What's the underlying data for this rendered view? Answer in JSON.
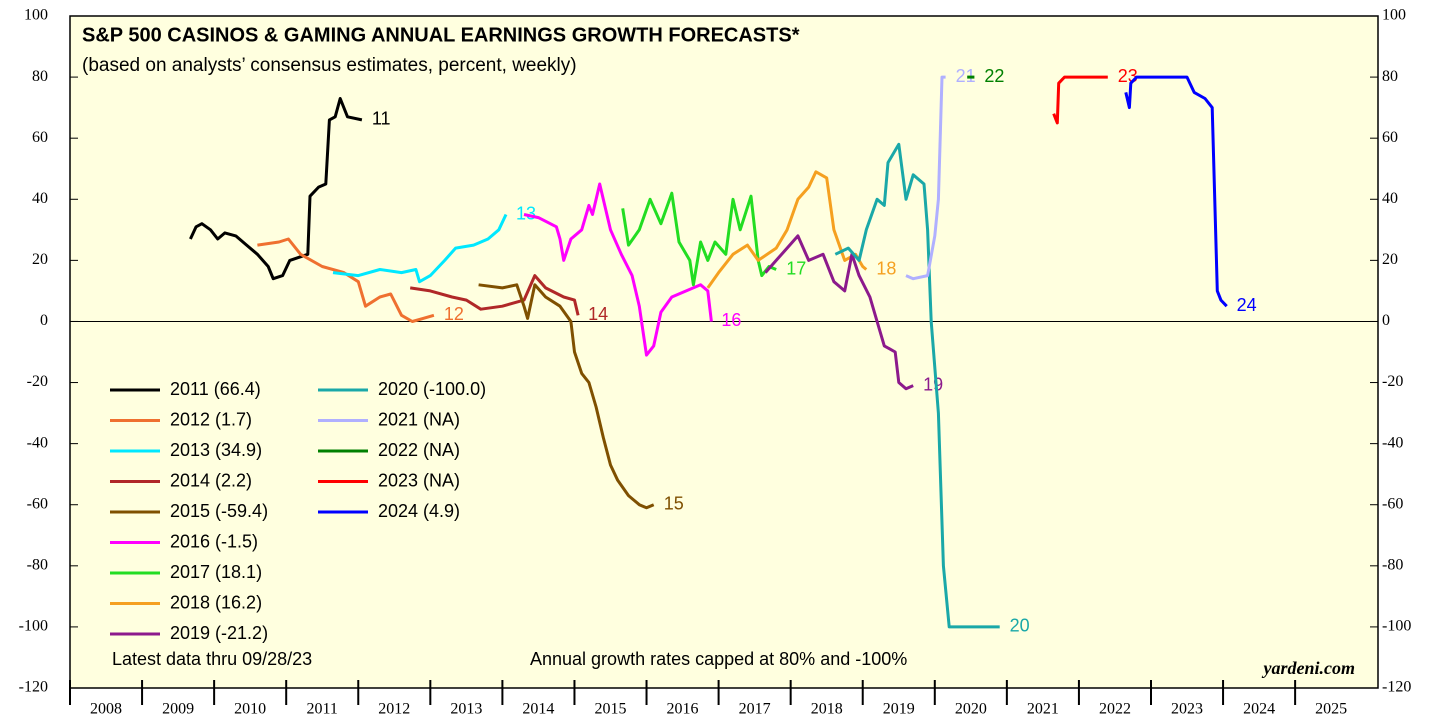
{
  "chart_data": {
    "type": "line",
    "title": "S&P 500 CASINOS & GAMING ANNUAL EARNINGS GROWTH FORECASTS*",
    "subtitle": "(based on analysts’ consensus estimates, percent, weekly)",
    "annotations": [
      "Latest data thru 09/28/23",
      "Annual growth rates capped at 80% and -100%"
    ],
    "source": "yardeni.com",
    "xlim": [
      2008,
      2026.15
    ],
    "xticks": [
      2008,
      2009,
      2010,
      2011,
      2012,
      2013,
      2014,
      2015,
      2016,
      2017,
      2018,
      2019,
      2020,
      2021,
      2022,
      2023,
      2024,
      2025
    ],
    "ylim": [
      -120,
      100
    ],
    "yticks": [
      -120,
      -100,
      -80,
      -60,
      -40,
      -20,
      0,
      20,
      40,
      60,
      80,
      100
    ],
    "series": [
      {
        "name": "2011 (66.4)",
        "label": "11",
        "color": "#000000",
        "x": [
          2009.67,
          2009.75,
          2009.83,
          2009.95,
          2010.05,
          2010.15,
          2010.3,
          2010.45,
          2010.6,
          2010.75,
          2010.82,
          2010.95,
          2011.05,
          2011.3,
          2011.33,
          2011.45,
          2011.55,
          2011.6,
          2011.68,
          2011.75,
          2011.85,
          2012.05
        ],
        "values": [
          27,
          31,
          32,
          30,
          27,
          29,
          28,
          25,
          22,
          18,
          14,
          15,
          20,
          22,
          41,
          44,
          45,
          66,
          67,
          73,
          67,
          66
        ]
      },
      {
        "name": "2012 (1.7)",
        "label": "12",
        "color": "#ef7030",
        "x": [
          2010.6,
          2010.9,
          2011.03,
          2011.2,
          2011.5,
          2011.8,
          2012.0,
          2012.1,
          2012.3,
          2012.45,
          2012.6,
          2012.75,
          2012.9,
          2013.05
        ],
        "values": [
          25,
          26,
          27,
          22,
          18,
          16,
          13,
          5,
          8,
          9,
          2,
          0,
          1,
          2
        ]
      },
      {
        "name": "2013 (34.9)",
        "label": "13",
        "color": "#00e8ff",
        "x": [
          2011.65,
          2012.0,
          2012.3,
          2012.6,
          2012.8,
          2012.85,
          2013.0,
          2013.2,
          2013.35,
          2013.6,
          2013.8,
          2013.95,
          2014.05
        ],
        "values": [
          16,
          15,
          17,
          16,
          17,
          13,
          15,
          20,
          24,
          25,
          27,
          30,
          35
        ]
      },
      {
        "name": "2014 (2.2)",
        "label": "14",
        "color": "#b02828",
        "x": [
          2012.72,
          2013.0,
          2013.3,
          2013.5,
          2013.7,
          2014.0,
          2014.3,
          2014.45,
          2014.6,
          2014.85,
          2015.0,
          2015.05
        ],
        "values": [
          11,
          10,
          8,
          7,
          4,
          5,
          7,
          15,
          11,
          8,
          7,
          2
        ]
      },
      {
        "name": "2015 (-59.4)",
        "label": "15",
        "color": "#7f5000",
        "x": [
          2013.67,
          2014.0,
          2014.2,
          2014.3,
          2014.35,
          2014.45,
          2014.6,
          2014.8,
          2014.95,
          2015.0,
          2015.1,
          2015.2,
          2015.3,
          2015.4,
          2015.5,
          2015.6,
          2015.75,
          2015.9,
          2016.0,
          2016.1
        ],
        "values": [
          12,
          11,
          12,
          5,
          1,
          12,
          8,
          5,
          0,
          -10,
          -17,
          -20,
          -28,
          -38,
          -47,
          -52,
          -57,
          -60,
          -61,
          -60
        ]
      },
      {
        "name": "2016 (-1.5)",
        "label": "16",
        "color": "#ff00ff",
        "x": [
          2014.3,
          2014.5,
          2014.75,
          2014.8,
          2014.85,
          2014.95,
          2015.1,
          2015.2,
          2015.25,
          2015.35,
          2015.5,
          2015.65,
          2015.8,
          2015.9,
          2016.0,
          2016.1,
          2016.2,
          2016.35,
          2016.55,
          2016.75,
          2016.85,
          2016.9
        ],
        "values": [
          35,
          34,
          31,
          27,
          20,
          27,
          30,
          38,
          35,
          45,
          30,
          22,
          15,
          5,
          -11,
          -8,
          3,
          8,
          10,
          12,
          10,
          0
        ]
      },
      {
        "name": "2017 (18.1)",
        "label": "17",
        "color": "#22dd22",
        "x": [
          2015.67,
          2015.75,
          2015.9,
          2016.05,
          2016.2,
          2016.35,
          2016.45,
          2016.6,
          2016.65,
          2016.75,
          2016.85,
          2016.95,
          2017.1,
          2017.2,
          2017.3,
          2017.45,
          2017.55,
          2017.6,
          2017.7,
          2017.8
        ],
        "values": [
          37,
          25,
          30,
          40,
          32,
          42,
          26,
          20,
          12,
          26,
          20,
          26,
          22,
          40,
          30,
          41,
          20,
          15,
          18,
          17
        ]
      },
      {
        "name": "2018 (16.2)",
        "label": "18",
        "color": "#f5a020",
        "x": [
          2016.85,
          2017.0,
          2017.2,
          2017.4,
          2017.55,
          2017.8,
          2017.95,
          2018.1,
          2018.25,
          2018.35,
          2018.5,
          2018.6,
          2018.75,
          2018.9,
          2019.0,
          2019.05
        ],
        "values": [
          11,
          16,
          22,
          25,
          20,
          24,
          30,
          40,
          44,
          49,
          47,
          30,
          20,
          22,
          18,
          17
        ]
      },
      {
        "name": "2019 (-21.2)",
        "label": "19",
        "color": "#8c1a8c",
        "x": [
          2017.65,
          2017.8,
          2017.95,
          2018.1,
          2018.25,
          2018.45,
          2018.6,
          2018.75,
          2018.85,
          2018.95,
          2019.1,
          2019.2,
          2019.3,
          2019.45,
          2019.5,
          2019.6,
          2019.7
        ],
        "values": [
          16,
          20,
          24,
          28,
          20,
          22,
          13,
          10,
          22,
          15,
          8,
          0,
          -8,
          -10,
          -20,
          -22,
          -21
        ]
      },
      {
        "name": "2020 (-100.0)",
        "label": "20",
        "color": "#1aa8a8",
        "x": [
          2018.62,
          2018.8,
          2018.95,
          2019.05,
          2019.2,
          2019.3,
          2019.35,
          2019.5,
          2019.6,
          2019.7,
          2019.85,
          2019.9,
          2019.95,
          2020.05,
          2020.12,
          2020.2,
          2020.9
        ],
        "values": [
          22,
          24,
          20,
          30,
          40,
          38,
          52,
          58,
          40,
          48,
          45,
          30,
          0,
          -30,
          -80,
          -100,
          -100
        ]
      },
      {
        "name": "2021 (NA)",
        "label": "21",
        "color": "#b0b0ff",
        "x": [
          2019.6,
          2019.7,
          2019.9,
          2020.0,
          2020.05,
          2020.1,
          2020.15
        ],
        "values": [
          15,
          14,
          15,
          28,
          40,
          80,
          80
        ]
      },
      {
        "name": "2022 (NA)",
        "label": "22",
        "color": "#008000",
        "x": [
          2020.45,
          2020.55
        ],
        "values": [
          80,
          80
        ]
      },
      {
        "name": "2023 (NA)",
        "label": "23",
        "color": "#ff0000",
        "x": [
          2021.65,
          2021.7,
          2021.72,
          2021.8,
          2022.4
        ],
        "values": [
          68,
          65,
          78,
          80,
          80
        ]
      },
      {
        "name": "2024 (4.9)",
        "label": "24",
        "color": "#0000ff",
        "x": [
          2022.65,
          2022.7,
          2022.72,
          2022.8,
          2023.5,
          2023.6,
          2023.75,
          2023.85,
          2023.92,
          2023.97,
          2024.05
        ],
        "values": [
          75,
          70,
          78,
          80,
          80,
          75,
          73,
          70,
          10,
          7,
          5
        ]
      }
    ]
  }
}
